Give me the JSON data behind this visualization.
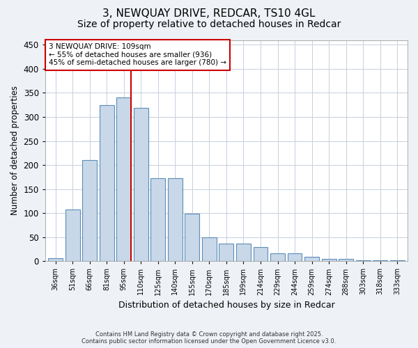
{
  "title1": "3, NEWQUAY DRIVE, REDCAR, TS10 4GL",
  "title2": "Size of property relative to detached houses in Redcar",
  "xlabel": "Distribution of detached houses by size in Redcar",
  "ylabel": "Number of detached properties",
  "categories": [
    "36sqm",
    "51sqm",
    "66sqm",
    "81sqm",
    "95sqm",
    "110sqm",
    "125sqm",
    "140sqm",
    "155sqm",
    "170sqm",
    "185sqm",
    "199sqm",
    "214sqm",
    "229sqm",
    "244sqm",
    "259sqm",
    "274sqm",
    "288sqm",
    "303sqm",
    "318sqm",
    "333sqm"
  ],
  "values": [
    6,
    107,
    211,
    325,
    341,
    319,
    173,
    173,
    99,
    50,
    36,
    36,
    30,
    16,
    16,
    9,
    5,
    5,
    2,
    2,
    2
  ],
  "bar_color": "#c8d8e8",
  "bar_edge_color": "#5b8db8",
  "vline_color": "#cc0000",
  "annotation_text": "3 NEWQUAY DRIVE: 109sqm\n← 55% of detached houses are smaller (936)\n45% of semi-detached houses are larger (780) →",
  "annotation_box_color": "#cc0000",
  "ylim": [
    0,
    460
  ],
  "yticks": [
    0,
    50,
    100,
    150,
    200,
    250,
    300,
    350,
    400,
    450
  ],
  "footer_line1": "Contains HM Land Registry data © Crown copyright and database right 2025.",
  "footer_line2": "Contains public sector information licensed under the Open Government Licence v3.0.",
  "bg_color": "#eef2f7",
  "plot_bg_color": "#ffffff",
  "grid_color": "#c5d0e0",
  "title_fontsize": 11,
  "subtitle_fontsize": 10
}
